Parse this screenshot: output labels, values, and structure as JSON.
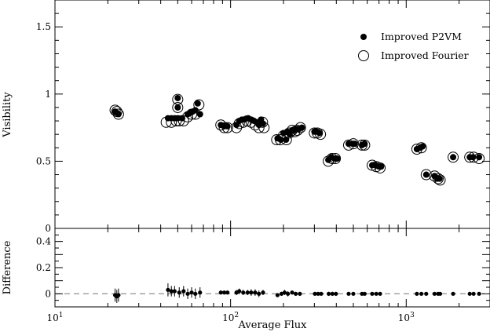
{
  "chart_data": [
    {
      "panel": "top",
      "type": "scatter",
      "xscale": "log",
      "xlim": [
        10,
        3000
      ],
      "ylim": [
        0,
        1.7
      ],
      "ylabel": "Visibility",
      "yticks": [
        0,
        0.5,
        1,
        1.5
      ],
      "ytick_labels": [
        "0",
        "0.5",
        "1",
        "1.5"
      ],
      "legend": {
        "position": "top-right"
      },
      "series": [
        {
          "name": "Improved P2VM",
          "marker": "filled-circle",
          "points": [
            [
              22,
              0.87
            ],
            [
              22.5,
              0.86
            ],
            [
              23,
              0.85
            ],
            [
              44,
              0.82
            ],
            [
              46,
              0.82
            ],
            [
              48,
              0.82
            ],
            [
              50,
              0.97
            ],
            [
              50,
              0.9
            ],
            [
              50,
              0.82
            ],
            [
              53,
              0.82
            ],
            [
              57,
              0.85
            ],
            [
              59,
              0.86
            ],
            [
              61,
              0.87
            ],
            [
              63,
              0.88
            ],
            [
              65,
              0.93
            ],
            [
              67,
              0.85
            ],
            [
              88,
              0.77
            ],
            [
              92,
              0.76
            ],
            [
              96,
              0.76
            ],
            [
              108,
              0.77
            ],
            [
              112,
              0.8
            ],
            [
              116,
              0.81
            ],
            [
              120,
              0.81
            ],
            [
              126,
              0.82
            ],
            [
              131,
              0.81
            ],
            [
              136,
              0.8
            ],
            [
              141,
              0.79
            ],
            [
              145,
              0.77
            ],
            [
              149,
              0.81
            ],
            [
              153,
              0.78
            ],
            [
              185,
              0.67
            ],
            [
              193,
              0.66
            ],
            [
              200,
              0.71
            ],
            [
              207,
              0.66
            ],
            [
              210,
              0.72
            ],
            [
              217,
              0.7
            ],
            [
              224,
              0.73
            ],
            [
              231,
              0.73
            ],
            [
              238,
              0.74
            ],
            [
              245,
              0.74
            ],
            [
              255,
              0.75
            ],
            [
              300,
              0.72
            ],
            [
              310,
              0.72
            ],
            [
              320,
              0.71
            ],
            [
              360,
              0.51
            ],
            [
              375,
              0.53
            ],
            [
              390,
              0.52
            ],
            [
              405,
              0.52
            ],
            [
              470,
              0.63
            ],
            [
              495,
              0.63
            ],
            [
              510,
              0.63
            ],
            [
              560,
              0.62
            ],
            [
              580,
              0.63
            ],
            [
              640,
              0.47
            ],
            [
              670,
              0.47
            ],
            [
              700,
              0.46
            ],
            [
              720,
              0.46
            ],
            [
              1150,
              0.59
            ],
            [
              1200,
              0.6
            ],
            [
              1240,
              0.61
            ],
            [
              1300,
              0.4
            ],
            [
              1450,
              0.39
            ],
            [
              1500,
              0.37
            ],
            [
              1550,
              0.37
            ],
            [
              1850,
              0.53
            ],
            [
              2300,
              0.53
            ],
            [
              2400,
              0.53
            ],
            [
              2600,
              0.53
            ]
          ]
        },
        {
          "name": "Improved Fourier",
          "marker": "open-circle",
          "points": [
            [
              22,
              0.88
            ],
            [
              22.5,
              0.87
            ],
            [
              23,
              0.85
            ],
            [
              43,
              0.79
            ],
            [
              46,
              0.79
            ],
            [
              49,
              0.8
            ],
            [
              51,
              0.8
            ],
            [
              54,
              0.8
            ],
            [
              50,
              0.96
            ],
            [
              50,
              0.9
            ],
            [
              57,
              0.83
            ],
            [
              60,
              0.85
            ],
            [
              63,
              0.85
            ],
            [
              66,
              0.92
            ],
            [
              88,
              0.77
            ],
            [
              92,
              0.75
            ],
            [
              96,
              0.75
            ],
            [
              108,
              0.75
            ],
            [
              112,
              0.78
            ],
            [
              118,
              0.79
            ],
            [
              124,
              0.8
            ],
            [
              131,
              0.79
            ],
            [
              138,
              0.77
            ],
            [
              145,
              0.75
            ],
            [
              152,
              0.79
            ],
            [
              155,
              0.75
            ],
            [
              183,
              0.66
            ],
            [
              192,
              0.66
            ],
            [
              200,
              0.69
            ],
            [
              208,
              0.66
            ],
            [
              216,
              0.71
            ],
            [
              224,
              0.73
            ],
            [
              232,
              0.72
            ],
            [
              240,
              0.73
            ],
            [
              250,
              0.75
            ],
            [
              300,
              0.71
            ],
            [
              312,
              0.71
            ],
            [
              325,
              0.7
            ],
            [
              360,
              0.5
            ],
            [
              378,
              0.52
            ],
            [
              395,
              0.52
            ],
            [
              470,
              0.62
            ],
            [
              500,
              0.63
            ],
            [
              560,
              0.62
            ],
            [
              580,
              0.62
            ],
            [
              640,
              0.47
            ],
            [
              675,
              0.46
            ],
            [
              710,
              0.45
            ],
            [
              1150,
              0.59
            ],
            [
              1220,
              0.6
            ],
            [
              1300,
              0.4
            ],
            [
              1450,
              0.39
            ],
            [
              1520,
              0.37
            ],
            [
              1560,
              0.36
            ],
            [
              1850,
              0.53
            ],
            [
              2300,
              0.53
            ],
            [
              2420,
              0.53
            ],
            [
              2600,
              0.52
            ]
          ]
        }
      ]
    },
    {
      "panel": "bottom",
      "type": "scatter",
      "xscale": "log",
      "xlim": [
        10,
        3000
      ],
      "ylim": [
        -0.1,
        0.5
      ],
      "xlabel": "Average Flux",
      "ylabel": "Difference",
      "xticks": [
        10,
        100,
        1000
      ],
      "xtick_labels": [
        {
          "base": "10",
          "exp": "1"
        },
        {
          "base": "10",
          "exp": "2"
        },
        {
          "base": "10",
          "exp": "3"
        }
      ],
      "yticks": [
        0,
        0.2,
        0.4
      ],
      "ytick_labels": [
        "0",
        "0.2",
        "0.4"
      ],
      "reference_line": {
        "y": 0,
        "style": "dashed",
        "color": "#999999"
      },
      "points": [
        {
          "x": 22,
          "y": -0.01,
          "err": 0.05
        },
        {
          "x": 22.5,
          "y": -0.02,
          "err": 0.05
        },
        {
          "x": 23,
          "y": -0.01,
          "err": 0.05
        },
        {
          "x": 44,
          "y": 0.03,
          "err": 0.05
        },
        {
          "x": 46,
          "y": 0.02,
          "err": 0.04
        },
        {
          "x": 48,
          "y": 0.02,
          "err": 0.04
        },
        {
          "x": 51,
          "y": 0.01,
          "err": 0.04
        },
        {
          "x": 54,
          "y": 0.02,
          "err": 0.04
        },
        {
          "x": 57,
          "y": 0.0,
          "err": 0.04
        },
        {
          "x": 60,
          "y": 0.01,
          "err": 0.04
        },
        {
          "x": 63,
          "y": 0.0,
          "err": 0.04
        },
        {
          "x": 67,
          "y": 0.01,
          "err": 0.04
        },
        {
          "x": 88,
          "y": 0.01,
          "err": 0.015
        },
        {
          "x": 92,
          "y": 0.01,
          "err": 0.015
        },
        {
          "x": 96,
          "y": 0.01,
          "err": 0.015
        },
        {
          "x": 108,
          "y": 0.01,
          "err": 0.02
        },
        {
          "x": 112,
          "y": 0.02,
          "err": 0.02
        },
        {
          "x": 118,
          "y": 0.01,
          "err": 0.02
        },
        {
          "x": 125,
          "y": 0.01,
          "err": 0.02
        },
        {
          "x": 131,
          "y": 0.01,
          "err": 0.025
        },
        {
          "x": 138,
          "y": 0.01,
          "err": 0.025
        },
        {
          "x": 145,
          "y": 0.0,
          "err": 0.025
        },
        {
          "x": 153,
          "y": 0.01,
          "err": 0.02
        },
        {
          "x": 185,
          "y": -0.01,
          "err": 0.015
        },
        {
          "x": 195,
          "y": 0.0,
          "err": 0.015
        },
        {
          "x": 203,
          "y": 0.01,
          "err": 0.02
        },
        {
          "x": 212,
          "y": 0.0,
          "err": 0.02
        },
        {
          "x": 224,
          "y": 0.01,
          "err": 0.015
        },
        {
          "x": 235,
          "y": 0.0,
          "err": 0.015
        },
        {
          "x": 248,
          "y": 0.0,
          "err": 0.015
        },
        {
          "x": 302,
          "y": 0.0,
          "err": 0.01
        },
        {
          "x": 315,
          "y": 0.0,
          "err": 0.01
        },
        {
          "x": 328,
          "y": 0.0,
          "err": 0.01
        },
        {
          "x": 362,
          "y": 0.0,
          "err": 0.015
        },
        {
          "x": 380,
          "y": 0.0,
          "err": 0.015
        },
        {
          "x": 398,
          "y": 0.0,
          "err": 0.015
        },
        {
          "x": 470,
          "y": 0.0,
          "err": 0.01
        },
        {
          "x": 500,
          "y": 0.0,
          "err": 0.01
        },
        {
          "x": 560,
          "y": 0.0,
          "err": 0.01
        },
        {
          "x": 580,
          "y": 0.0,
          "err": 0.01
        },
        {
          "x": 640,
          "y": 0.0,
          "err": 0.01
        },
        {
          "x": 675,
          "y": 0.0,
          "err": 0.01
        },
        {
          "x": 710,
          "y": 0.0,
          "err": 0.01
        },
        {
          "x": 1150,
          "y": 0.0,
          "err": 0.01
        },
        {
          "x": 1220,
          "y": 0.0,
          "err": 0.01
        },
        {
          "x": 1300,
          "y": 0.0,
          "err": 0.01
        },
        {
          "x": 1450,
          "y": 0.0,
          "err": 0.01
        },
        {
          "x": 1520,
          "y": 0.0,
          "err": 0.01
        },
        {
          "x": 1560,
          "y": 0.0,
          "err": 0.01
        },
        {
          "x": 1850,
          "y": 0.0,
          "err": 0.01
        },
        {
          "x": 2300,
          "y": 0.0,
          "err": 0.01
        },
        {
          "x": 2420,
          "y": 0.0,
          "err": 0.01
        },
        {
          "x": 2600,
          "y": 0.0,
          "err": 0.01
        }
      ]
    }
  ]
}
